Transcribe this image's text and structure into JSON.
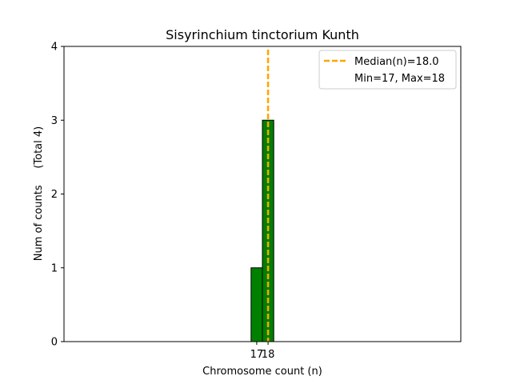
{
  "chart_data": {
    "type": "bar",
    "title": "Sisyrinchium tinctorium Kunth",
    "xlabel": "Chromosome count (n)",
    "ylabel": "Num of counts     (Total 4)",
    "categories": [
      "17",
      "18"
    ],
    "x": [
      17,
      18
    ],
    "values": [
      1,
      3
    ],
    "xlim": [
      0,
      35
    ],
    "ylim": [
      0,
      4
    ],
    "yticks": [
      0,
      1,
      2,
      3,
      4
    ],
    "xticks": [
      17,
      18
    ],
    "bar_color": "#008000",
    "bar_edge_color": "#000000",
    "median": {
      "value": 18.0,
      "label": "Median(n)=18.0",
      "color": "#ffa500",
      "style": "dashed"
    },
    "legend": {
      "placement": "top-right",
      "entries": [
        "Median(n)=18.0",
        "Min=17, Max=18"
      ]
    },
    "grid": false
  }
}
